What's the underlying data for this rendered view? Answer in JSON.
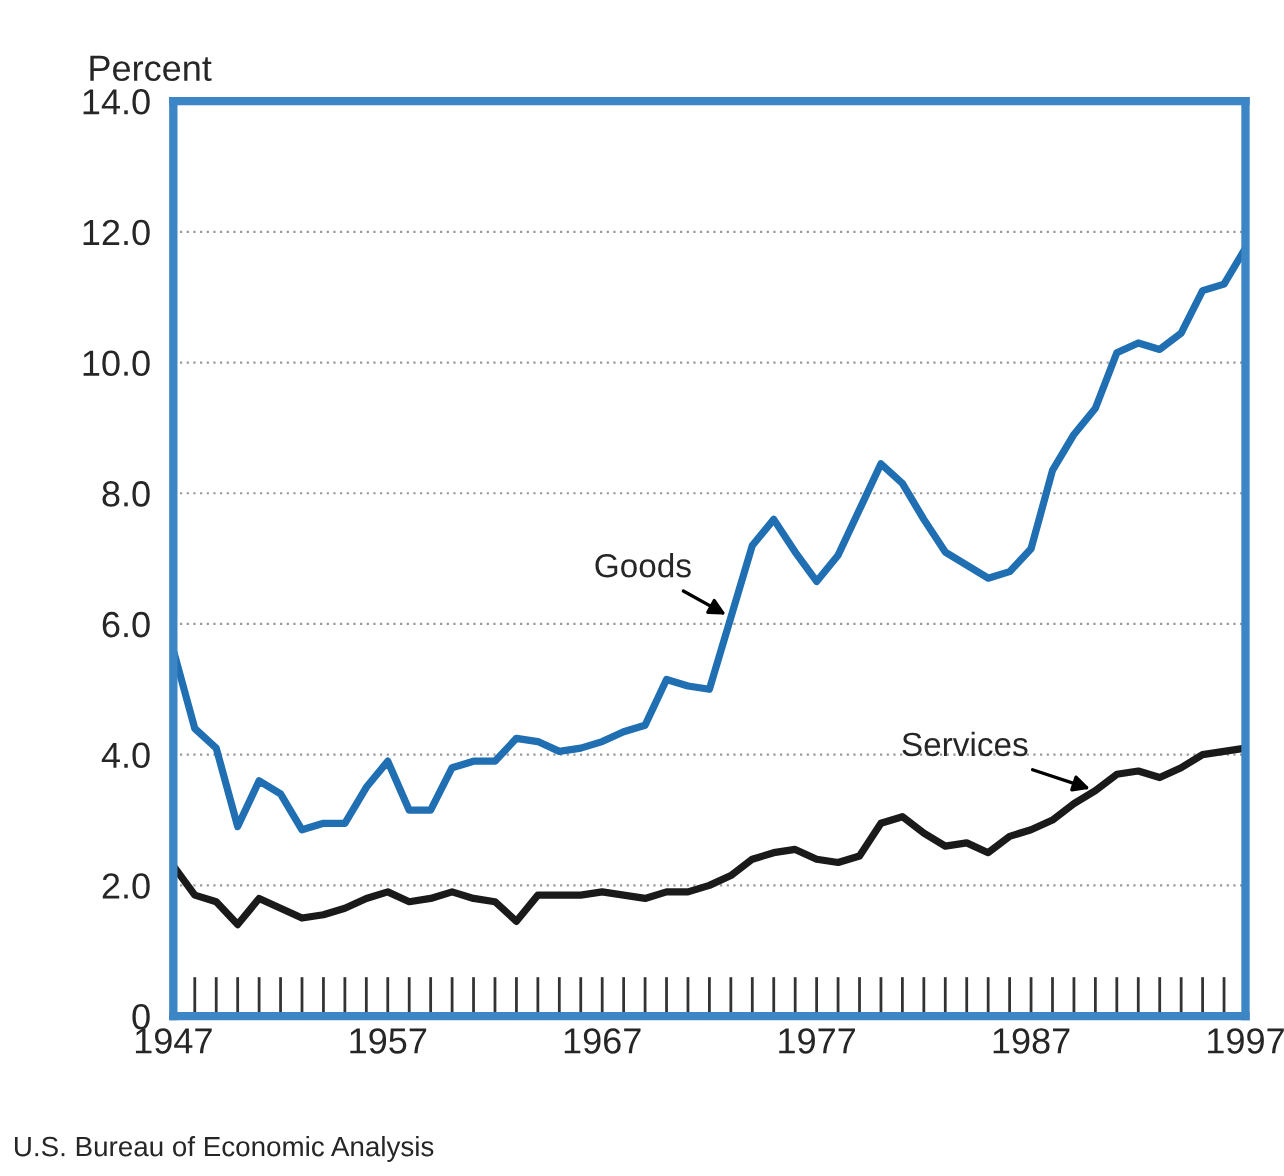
{
  "chart_data": {
    "type": "line",
    "ylabel": "Percent",
    "x": [
      1947,
      1948,
      1949,
      1950,
      1951,
      1952,
      1953,
      1954,
      1955,
      1956,
      1957,
      1958,
      1959,
      1960,
      1961,
      1962,
      1963,
      1964,
      1965,
      1966,
      1967,
      1968,
      1969,
      1970,
      1971,
      1972,
      1973,
      1974,
      1975,
      1976,
      1977,
      1978,
      1979,
      1980,
      1981,
      1982,
      1983,
      1984,
      1985,
      1986,
      1987,
      1988,
      1989,
      1990,
      1991,
      1992,
      1993,
      1994,
      1995,
      1996,
      1997
    ],
    "series": [
      {
        "name": "Goods",
        "color": "#1f6fb2",
        "values": [
          5.6,
          4.4,
          4.1,
          2.9,
          3.6,
          3.4,
          2.85,
          2.95,
          2.95,
          3.5,
          3.9,
          3.15,
          3.15,
          3.8,
          3.9,
          3.9,
          4.25,
          4.2,
          4.05,
          4.1,
          4.2,
          4.35,
          4.45,
          5.15,
          5.05,
          5.0,
          6.1,
          7.2,
          7.6,
          7.1,
          6.65,
          7.05,
          7.75,
          8.45,
          8.15,
          7.6,
          7.1,
          6.9,
          6.7,
          6.8,
          7.15,
          8.35,
          8.9,
          9.3,
          10.15,
          10.3,
          10.2,
          10.45,
          11.1,
          11.2,
          11.75
        ]
      },
      {
        "name": "Services",
        "color": "#1a1a1a",
        "values": [
          2.3,
          1.85,
          1.75,
          1.4,
          1.8,
          1.65,
          1.5,
          1.55,
          1.65,
          1.8,
          1.9,
          1.75,
          1.8,
          1.9,
          1.8,
          1.75,
          1.45,
          1.85,
          1.85,
          1.85,
          1.9,
          1.85,
          1.8,
          1.9,
          1.9,
          2.0,
          2.15,
          2.4,
          2.5,
          2.55,
          2.4,
          2.35,
          2.45,
          2.95,
          3.05,
          2.8,
          2.6,
          2.65,
          2.5,
          2.75,
          2.85,
          3.0,
          3.25,
          3.45,
          3.7,
          3.75,
          3.65,
          3.8,
          4.0,
          4.05,
          4.1
        ]
      }
    ],
    "xlim": [
      1947,
      1997
    ],
    "xticks": [
      1947,
      1957,
      1967,
      1977,
      1987,
      1997
    ],
    "ylim": [
      0,
      14
    ],
    "yticks": [
      0,
      {
        "value": 2,
        "label": "2.0"
      },
      {
        "value": 4,
        "label": "4.0"
      },
      {
        "value": 6,
        "label": "6.0"
      },
      {
        "value": 8,
        "label": "8.0"
      },
      {
        "value": 10,
        "label": "10.0"
      },
      {
        "value": 12,
        "label": "12.0"
      },
      {
        "value": 14,
        "label": "14.0"
      }
    ],
    "grid": "y",
    "legend": false,
    "marker": "none",
    "line_style": "solid",
    "annotations": [
      "U.S. Bureau of Economic Analysis"
    ]
  }
}
